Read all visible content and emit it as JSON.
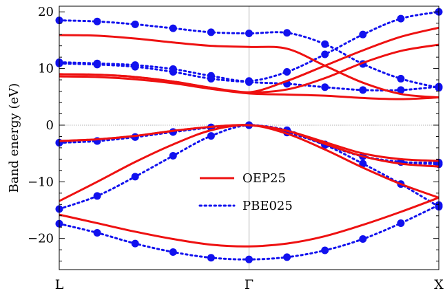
{
  "chart_data": {
    "type": "line",
    "title": "",
    "xlabel": "",
    "ylabel": "Band energy (eV)",
    "xlim": [
      0,
      1
    ],
    "ylim": [
      -25.5,
      21
    ],
    "x_tick_positions": [
      0,
      0.5,
      1
    ],
    "x_tick_labels": [
      "L",
      "Γ",
      "X"
    ],
    "y_ticks": [
      -20,
      -10,
      0,
      10,
      20
    ],
    "y_tick_labels": [
      "−20",
      "−10",
      "0",
      "10",
      "20"
    ],
    "reference_lines": {
      "x": 0.5,
      "y": 0
    },
    "legend": {
      "placement": "center",
      "entries": [
        {
          "label": "OEP25",
          "color": "#ee1111",
          "style": "solid"
        },
        {
          "label": "PBE025",
          "color": "#1111ee",
          "style": "dotted-markers"
        }
      ]
    },
    "series": [
      {
        "name": "OEP25",
        "color": "#ee1111",
        "style": "solid",
        "bands": [
          {
            "x": [
              0,
              0.1,
              0.2,
              0.3,
              0.4,
              0.5,
              0.6,
              0.7,
              0.8,
              0.9,
              1.0
            ],
            "y": [
              -15.8,
              -17.3,
              -18.8,
              -20.1,
              -21.1,
              -21.4,
              -20.9,
              -19.6,
              -17.6,
              -15.3,
              -12.8
            ]
          },
          {
            "x": [
              0,
              0.1,
              0.2,
              0.3,
              0.4,
              0.5,
              0.6,
              0.7,
              0.8,
              0.9,
              1.0
            ],
            "y": [
              -13.4,
              -10.0,
              -6.5,
              -3.4,
              -0.9,
              0.0,
              -1.5,
              -4.3,
              -7.5,
              -10.4,
              -12.8
            ]
          },
          {
            "x": [
              0,
              0.1,
              0.2,
              0.3,
              0.4,
              0.5,
              0.6,
              0.7,
              0.8,
              0.9,
              1.0
            ],
            "y": [
              -2.8,
              -2.5,
              -1.9,
              -1.0,
              -0.3,
              0.0,
              -1.0,
              -3.0,
              -5.0,
              -6.0,
              -6.3
            ]
          },
          {
            "x": [
              0,
              0.1,
              0.2,
              0.3,
              0.4,
              0.5,
              0.6,
              0.7,
              0.8,
              0.9,
              1.0
            ],
            "y": [
              -2.8,
              -2.5,
              -1.9,
              -1.0,
              -0.3,
              0.0,
              -1.0,
              -3.3,
              -5.5,
              -6.8,
              -7.3
            ]
          },
          {
            "x": [
              0,
              0.1,
              0.2,
              0.3,
              0.4,
              0.5,
              0.6,
              0.7,
              0.8,
              0.9,
              1.0
            ],
            "y": [
              8.6,
              8.5,
              8.1,
              7.4,
              6.4,
              5.6,
              5.4,
              5.2,
              4.8,
              4.6,
              4.9
            ]
          },
          {
            "x": [
              0,
              0.1,
              0.2,
              0.3,
              0.4,
              0.5,
              0.6,
              0.7,
              0.8,
              0.9,
              1.0
            ],
            "y": [
              9.0,
              8.9,
              8.5,
              7.7,
              6.6,
              5.8,
              6.3,
              8.3,
              11.0,
              13.1,
              14.2
            ]
          },
          {
            "x": [
              0,
              0.1,
              0.2,
              0.3,
              0.4,
              0.5,
              0.6,
              0.7,
              0.8,
              0.9,
              1.0
            ],
            "y": [
              15.9,
              15.8,
              15.3,
              14.6,
              14.0,
              13.8,
              13.5,
              10.5,
              7.5,
              5.5,
              4.9
            ]
          },
          {
            "x": [
              0,
              0.1,
              0.2,
              0.3,
              0.4,
              0.5,
              0.6,
              0.7,
              0.8,
              0.9,
              1.0
            ],
            "y": [
              9.0,
              8.9,
              8.5,
              7.7,
              6.6,
              5.8,
              7.8,
              10.5,
              13.2,
              15.6,
              17.2
            ]
          }
        ]
      },
      {
        "name": "PBE025",
        "color": "#1111ee",
        "style": "dotted-markers",
        "bands": [
          {
            "x": [
              0,
              0.1,
              0.2,
              0.3,
              0.4,
              0.5,
              0.6,
              0.7,
              0.8,
              0.9,
              1.0
            ],
            "y": [
              -17.4,
              -19.0,
              -20.9,
              -22.4,
              -23.4,
              -23.7,
              -23.3,
              -22.1,
              -20.1,
              -17.3,
              -14.1
            ]
          },
          {
            "x": [
              0,
              0.1,
              0.2,
              0.3,
              0.4,
              0.5,
              0.6,
              0.7,
              0.8,
              0.9,
              1.0
            ],
            "y": [
              -14.8,
              -12.5,
              -9.1,
              -5.4,
              -1.9,
              0.0,
              -1.3,
              -3.5,
              -6.8,
              -10.4,
              -14.4
            ]
          },
          {
            "x": [
              0,
              0.1,
              0.2,
              0.3,
              0.4,
              0.5,
              0.6,
              0.7,
              0.8,
              0.9,
              1.0
            ],
            "y": [
              -3.1,
              -2.8,
              -2.1,
              -1.2,
              -0.4,
              0.0,
              -0.9,
              -3.4,
              -5.5,
              -6.5,
              -6.6
            ]
          },
          {
            "x": [
              0,
              0.1,
              0.2,
              0.3,
              0.4,
              0.5,
              0.6,
              0.7,
              0.8,
              0.9,
              1.0
            ],
            "y": [
              -3.1,
              -2.8,
              -2.1,
              -1.2,
              -0.4,
              0.0,
              -0.9,
              -3.4,
              -5.5,
              -6.5,
              -6.9
            ]
          },
          {
            "x": [
              0,
              0.1,
              0.2,
              0.3,
              0.4,
              0.5,
              0.6,
              0.7,
              0.8,
              0.9,
              1.0
            ],
            "y": [
              10.9,
              10.7,
              10.3,
              9.4,
              8.2,
              7.6,
              7.3,
              6.7,
              6.2,
              6.2,
              6.8
            ]
          },
          {
            "x": [
              0,
              0.1,
              0.2,
              0.3,
              0.4,
              0.5,
              0.6,
              0.7,
              0.8,
              0.9,
              1.0
            ],
            "y": [
              11.1,
              10.9,
              10.6,
              9.9,
              8.7,
              7.8,
              9.4,
              12.5,
              16.0,
              18.8,
              20.0
            ]
          },
          {
            "x": [
              0,
              0.1,
              0.2,
              0.3,
              0.4,
              0.5,
              0.6,
              0.7,
              0.8,
              0.9,
              1.0
            ],
            "y": [
              18.5,
              18.3,
              17.8,
              17.1,
              16.4,
              16.2,
              16.3,
              14.3,
              10.8,
              8.2,
              6.6
            ]
          }
        ]
      }
    ]
  }
}
